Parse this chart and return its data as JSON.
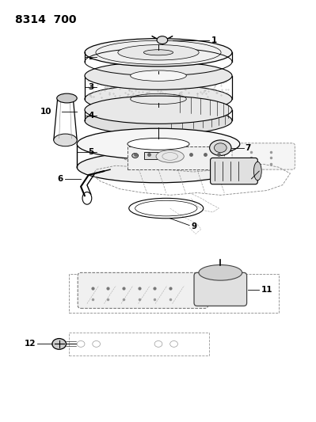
{
  "title": "8314  700",
  "title_fontsize": 10,
  "title_fontweight": "bold",
  "bg_color": "#ffffff",
  "line_color": "#000000",
  "fig_width": 3.99,
  "fig_height": 5.33,
  "dpi": 100,
  "label_fontsize": 7.5
}
